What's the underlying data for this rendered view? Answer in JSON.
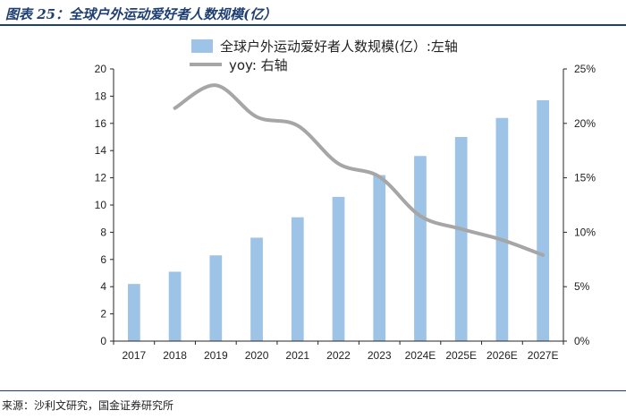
{
  "figure_title": "图表 25：全球户外运动爱好者人数规模(亿）",
  "source": "来源：沙利文研究，国金证券研究所",
  "colors": {
    "bar": "#9dc3e6",
    "line": "#a6a6a6",
    "axis": "#262626",
    "title": "#1f3f73"
  },
  "chart_data": {
    "type": "bar",
    "categories": [
      "2017",
      "2018",
      "2019",
      "2020",
      "2021",
      "2022",
      "2023",
      "2024E",
      "2025E",
      "2026E",
      "2027E"
    ],
    "series": [
      {
        "name": "全球户外运动爱好者人数规模(亿）:左轴",
        "type": "bar",
        "axis": "left",
        "values": [
          4.2,
          5.1,
          6.3,
          7.6,
          9.1,
          10.6,
          12.2,
          13.6,
          15.0,
          16.4,
          17.7
        ]
      },
      {
        "name": "yoy:  右轴",
        "type": "line",
        "axis": "right",
        "values": [
          null,
          21.4,
          23.5,
          20.6,
          19.8,
          16.3,
          15.1,
          11.5,
          10.3,
          9.3,
          7.9
        ]
      }
    ],
    "left_axis": {
      "ylim": [
        0,
        20
      ],
      "ticks": [
        "0",
        "2",
        "4",
        "6",
        "8",
        "10",
        "12",
        "14",
        "16",
        "18",
        "20"
      ]
    },
    "right_axis": {
      "ylim": [
        0,
        25
      ],
      "ticks": [
        "0%",
        "5%",
        "10%",
        "15%",
        "20%",
        "25%"
      ]
    },
    "legend_position": "top-center",
    "grid": false
  }
}
